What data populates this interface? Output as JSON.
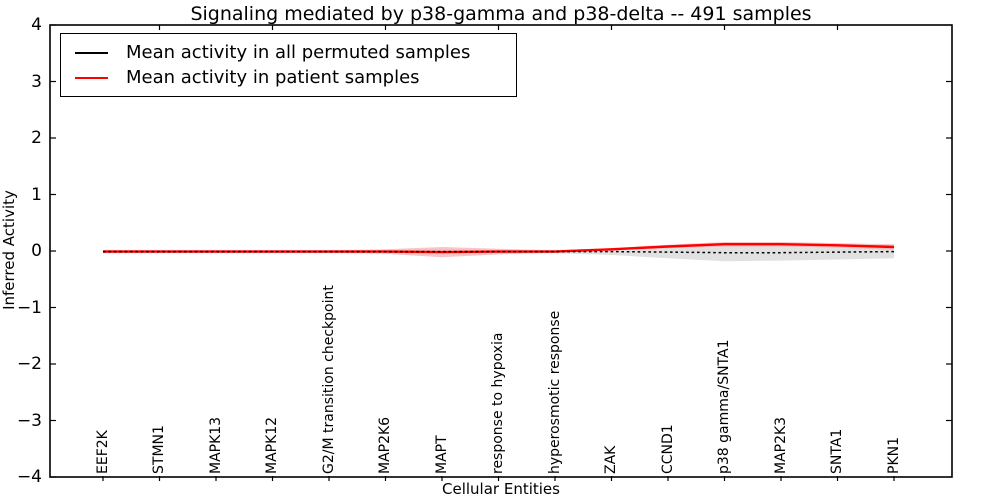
{
  "chart_data": {
    "type": "line",
    "title": "Signaling mediated by p38-gamma and p38-delta -- 491 samples",
    "xlabel": "Cellular Entities",
    "ylabel": "Inferred Activity",
    "ylim": [
      -4,
      4
    ],
    "y_ticks": [
      4,
      3,
      2,
      1,
      0,
      -1,
      -2,
      -3,
      -4
    ],
    "y_tick_labels": [
      "4",
      "3",
      "2",
      "1",
      "0",
      "−1",
      "−2",
      "−3",
      "−4"
    ],
    "grid": false,
    "legend_position": "upper left",
    "x_tick_label_rotation": 90,
    "categories": [
      "EEF2K",
      "STMN1",
      "MAPK13",
      "MAPK12",
      "G2/M transition checkpoint",
      "MAP2K6",
      "MAPT",
      "response to hypoxia",
      "hyperosmotic response",
      "ZAK",
      "CCND1",
      "p38 gamma/SNTA1",
      "MAP2K3",
      "SNTA1",
      "PKN1"
    ],
    "series": [
      {
        "name": "Mean activity in all permuted samples",
        "color": "#000000",
        "line_style": "dashed",
        "values": [
          -0.01,
          -0.01,
          -0.01,
          -0.01,
          -0.01,
          -0.01,
          -0.01,
          -0.01,
          -0.01,
          -0.01,
          -0.02,
          -0.03,
          -0.03,
          -0.02,
          -0.01
        ],
        "band_halfwidth": [
          0.03,
          0.03,
          0.03,
          0.03,
          0.03,
          0.03,
          0.05,
          0.03,
          0.03,
          0.06,
          0.11,
          0.15,
          0.14,
          0.13,
          0.12
        ],
        "band_color": "#dcdcdc"
      },
      {
        "name": "Mean activity in patient samples",
        "color": "#ff0000",
        "line_style": "solid",
        "values": [
          -0.01,
          -0.01,
          -0.01,
          -0.01,
          -0.01,
          -0.01,
          -0.02,
          -0.01,
          -0.01,
          0.03,
          0.08,
          0.12,
          0.12,
          0.1,
          0.07
        ],
        "band_halfwidth": [
          0.03,
          0.02,
          0.02,
          0.02,
          0.02,
          0.04,
          0.09,
          0.05,
          0.02,
          0.02,
          0.03,
          0.04,
          0.04,
          0.04,
          0.05
        ],
        "band_color": "#f7b6b6"
      }
    ]
  }
}
